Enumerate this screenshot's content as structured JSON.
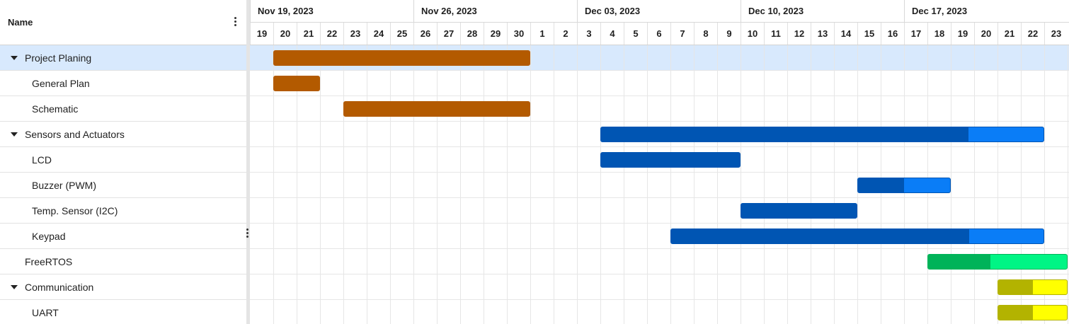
{
  "left_panel": {
    "header": {
      "name_label": "Name"
    }
  },
  "timeline": {
    "start_date": "2023-11-19",
    "weeks": [
      "Nov 19, 2023",
      "Nov 26, 2023",
      "Dec 03, 2023",
      "Dec 10, 2023",
      "Dec 17, 2023"
    ],
    "days": [
      "19",
      "20",
      "21",
      "22",
      "23",
      "24",
      "25",
      "26",
      "27",
      "28",
      "29",
      "30",
      "1",
      "2",
      "3",
      "4",
      "5",
      "6",
      "7",
      "8",
      "9",
      "10",
      "11",
      "12",
      "13",
      "14",
      "15",
      "16",
      "17",
      "18",
      "19",
      "20",
      "21",
      "22",
      "23"
    ]
  },
  "tasks": [
    {
      "label": "Project Planing",
      "level": 0,
      "expandable": true,
      "selected": true,
      "start": "2023-11-20",
      "end": "2023-11-30",
      "progress": 1.0,
      "color": "#b35a00",
      "progress_color": "#b35a00"
    },
    {
      "label": "General Plan",
      "level": 1,
      "expandable": false,
      "selected": false,
      "start": "2023-11-20",
      "end": "2023-11-21",
      "progress": 1.0,
      "color": "#b35a00",
      "progress_color": "#b35a00"
    },
    {
      "label": "Schematic",
      "level": 1,
      "expandable": false,
      "selected": false,
      "start": "2023-11-23",
      "end": "2023-11-30",
      "progress": 1.0,
      "color": "#b35a00",
      "progress_color": "#b35a00"
    },
    {
      "label": "Sensors and Actuators",
      "level": 0,
      "expandable": true,
      "selected": false,
      "start": "2023-12-04",
      "end": "2023-12-22",
      "progress": 0.83,
      "color": "#0a7df7",
      "progress_color": "#0055b3"
    },
    {
      "label": "LCD",
      "level": 1,
      "expandable": false,
      "selected": false,
      "start": "2023-12-04",
      "end": "2023-12-09",
      "progress": 1.0,
      "color": "#0055b3",
      "progress_color": "#0055b3"
    },
    {
      "label": "Buzzer (PWM)",
      "level": 1,
      "expandable": false,
      "selected": false,
      "start": "2023-12-15",
      "end": "2023-12-18",
      "progress": 0.5,
      "color": "#0a7df7",
      "progress_color": "#0055b3"
    },
    {
      "label": "Temp. Sensor (I2C)",
      "level": 1,
      "expandable": false,
      "selected": false,
      "start": "2023-12-10",
      "end": "2023-12-14",
      "progress": 1.0,
      "color": "#0055b3",
      "progress_color": "#0055b3"
    },
    {
      "label": "Keypad",
      "level": 1,
      "expandable": false,
      "selected": false,
      "start": "2023-12-07",
      "end": "2023-12-22",
      "progress": 0.8,
      "color": "#0a7df7",
      "progress_color": "#0055b3"
    },
    {
      "label": "FreeRTOS",
      "level": 0,
      "expandable": false,
      "selected": false,
      "start": "2023-12-18",
      "end": "2023-12-23",
      "progress": 0.45,
      "color": "#00f585",
      "progress_color": "#00b359"
    },
    {
      "label": "Communication",
      "level": 0,
      "expandable": true,
      "selected": false,
      "start": "2023-12-21",
      "end": "2023-12-23",
      "progress": 0.5,
      "color": "#ffff00",
      "progress_color": "#b3b300"
    },
    {
      "label": "UART",
      "level": 1,
      "expandable": false,
      "selected": false,
      "start": "2023-12-21",
      "end": "2023-12-23",
      "progress": 0.5,
      "color": "#ffff00",
      "progress_color": "#b3b300"
    }
  ],
  "icons": {
    "column_menu": "vertical-dots-icon",
    "expand": "caret-down-icon",
    "splitter": "drag-handle-icon"
  }
}
